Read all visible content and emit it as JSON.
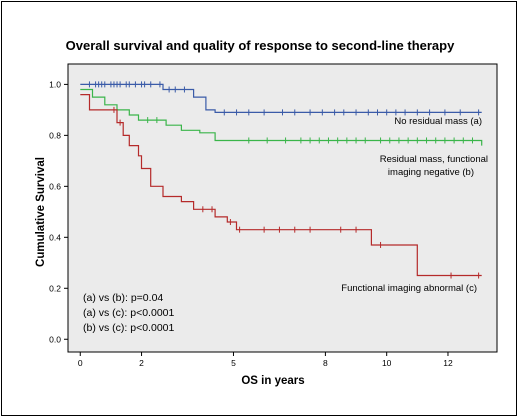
{
  "chart_data": {
    "type": "line",
    "title": "Overall survival and quality of response to second-line therapy",
    "xlabel": "OS in years",
    "ylabel": "Cumulative Survival",
    "xlim": [
      -0.4,
      13.6
    ],
    "ylim": [
      -0.05,
      1.08
    ],
    "x_ticks": [
      0,
      2,
      5,
      8,
      10,
      12
    ],
    "x_tick_labels": [
      "0",
      "2",
      "5",
      "8",
      "10",
      "12"
    ],
    "y_ticks": [
      0.0,
      0.2,
      0.4,
      0.6,
      0.8,
      1.0
    ],
    "y_tick_labels": [
      "0.0",
      "0.2",
      "0.4",
      "0.6",
      "0.8",
      "1.0"
    ],
    "grid": false,
    "plot_background": "#ebebeb",
    "series": [
      {
        "name": "No residual mass (a)",
        "color": "#3a5ba8",
        "steps": [
          [
            0,
            1.0
          ],
          [
            2.7,
            0.98
          ],
          [
            3.7,
            0.95
          ],
          [
            4.1,
            0.9
          ],
          [
            4.4,
            0.89
          ],
          [
            13.1,
            0.89
          ]
        ],
        "censored": [
          0.3,
          0.5,
          0.6,
          0.7,
          0.8,
          1.0,
          1.1,
          1.2,
          1.3,
          1.5,
          1.6,
          1.8,
          2.0,
          2.1,
          2.3,
          2.6,
          2.9,
          3.1,
          3.4,
          4.7,
          5.1,
          5.5,
          6.0,
          6.6,
          7.0,
          7.5,
          7.9,
          8.3,
          8.6,
          9.0,
          9.4,
          9.7,
          10.0,
          10.3,
          10.6,
          11.0,
          11.4,
          11.9,
          12.4,
          13.0
        ]
      },
      {
        "name": "Residual mass, functional imaging negative (b)",
        "color": "#3ab54a",
        "steps": [
          [
            0,
            0.98
          ],
          [
            0.4,
            0.95
          ],
          [
            0.8,
            0.92
          ],
          [
            1.2,
            0.9
          ],
          [
            1.6,
            0.88
          ],
          [
            1.9,
            0.86
          ],
          [
            2.8,
            0.84
          ],
          [
            3.3,
            0.82
          ],
          [
            3.9,
            0.81
          ],
          [
            4.4,
            0.78
          ],
          [
            13.1,
            0.76
          ]
        ],
        "censored": [
          2.2,
          2.5,
          5.5,
          6.1,
          6.7,
          7.2,
          7.5,
          7.8,
          8.1,
          8.4,
          8.7,
          9.0,
          9.3,
          9.8,
          10.1,
          10.4,
          10.7,
          11.0,
          11.3,
          11.6,
          11.9,
          12.2,
          12.5,
          12.8
        ]
      },
      {
        "name": "Functional imaging abnormal (c)",
        "color": "#b52a2a",
        "steps": [
          [
            0,
            0.96
          ],
          [
            0.3,
            0.9
          ],
          [
            1.2,
            0.85
          ],
          [
            1.4,
            0.8
          ],
          [
            1.6,
            0.76
          ],
          [
            1.9,
            0.72
          ],
          [
            2.0,
            0.67
          ],
          [
            2.3,
            0.6
          ],
          [
            2.7,
            0.56
          ],
          [
            3.3,
            0.54
          ],
          [
            3.7,
            0.51
          ],
          [
            4.4,
            0.48
          ],
          [
            4.8,
            0.46
          ],
          [
            5.1,
            0.43
          ],
          [
            9.5,
            0.37
          ],
          [
            11.0,
            0.25
          ],
          [
            13.1,
            0.25
          ]
        ],
        "censored": [
          1.1,
          1.3,
          4.0,
          4.3,
          4.9,
          5.2,
          6.0,
          6.5,
          7.0,
          7.5,
          8.5,
          9.0,
          9.8,
          12.1,
          13.0
        ]
      }
    ],
    "annotations": [
      "(a) vs (b): p=0.04",
      "(a) vs (c): p<0.0001",
      "(b) vs (c): p<0.0001"
    ]
  }
}
